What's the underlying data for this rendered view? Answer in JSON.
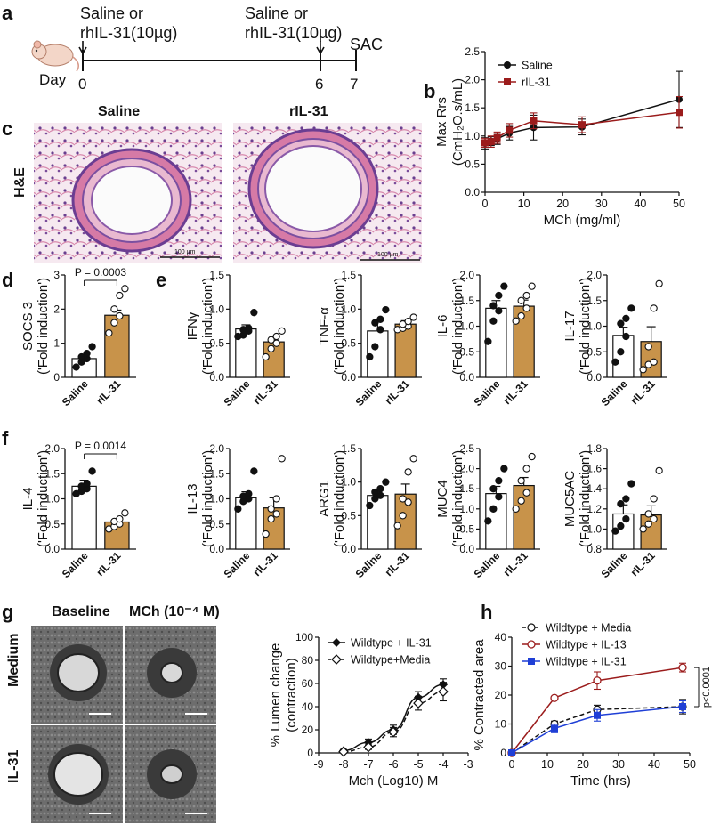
{
  "panel_letters": {
    "a": "a",
    "b": "b",
    "c": "c",
    "d": "d",
    "e": "e",
    "f": "f",
    "g": "g",
    "h": "h"
  },
  "timeline": {
    "injection_label_l1": "Saline or",
    "injection_label_l2": "rhIL-31(10µg)",
    "day_label": "Day",
    "days": [
      "0",
      "6",
      "7"
    ],
    "sac_label": "SAC"
  },
  "histology": {
    "row_label": "H&E",
    "titles": [
      "Saline",
      "rIL-31"
    ],
    "scale_text": "100 µm"
  },
  "explant": {
    "col_titles": [
      "Baseline",
      "MCh (10⁻⁴ M)"
    ],
    "row_labels": [
      "Medium",
      "IL-31"
    ]
  },
  "colors": {
    "saline": "#111111",
    "il31_red": "#9b1c1c",
    "bar_fill": "#c8934a",
    "blue": "#1f3fd6"
  },
  "chart_data": [
    {
      "id": "b",
      "type": "line",
      "xlabel": "MCh (mg/ml)",
      "ylabel_l1": "Max Rrs",
      "ylabel_l2": "(CmH₂O.s/mL)",
      "xlim": [
        0,
        50
      ],
      "ylim": [
        0,
        2.5
      ],
      "xticks": [
        0,
        10,
        20,
        30,
        40,
        50
      ],
      "yticks": [
        0.0,
        0.5,
        1.0,
        1.5,
        2.0,
        2.5
      ],
      "legend_pos": "top-left",
      "series": [
        {
          "name": "Saline",
          "x": [
            0,
            1.5625,
            3.125,
            6.25,
            12.5,
            25,
            50
          ],
          "y": [
            0.87,
            0.91,
            0.95,
            1.05,
            1.15,
            1.16,
            1.65
          ],
          "err": [
            0.1,
            0.08,
            0.1,
            0.12,
            0.22,
            0.14,
            0.5
          ],
          "color": "#111111",
          "marker": "circle"
        },
        {
          "name": "rIL-31",
          "x": [
            0,
            1.5625,
            3.125,
            6.25,
            12.5,
            25,
            50
          ],
          "y": [
            0.88,
            0.9,
            0.97,
            1.1,
            1.27,
            1.2,
            1.42
          ],
          "err": [
            0.08,
            0.1,
            0.1,
            0.12,
            0.14,
            0.14,
            0.28
          ],
          "color": "#9b1c1c",
          "marker": "square"
        }
      ]
    },
    {
      "id": "d",
      "type": "bar",
      "ylabel": "SOCS 3",
      "ylim": [
        0,
        3
      ],
      "yticks": [
        0,
        1,
        2,
        3
      ],
      "categories": [
        "Saline",
        "rIL-31"
      ],
      "values": [
        0.55,
        1.82
      ],
      "sem": [
        0.1,
        0.15
      ],
      "points": [
        [
          0.3,
          0.45,
          0.55,
          0.6,
          0.7,
          0.9
        ],
        [
          1.3,
          1.6,
          1.8,
          2.0,
          2.4,
          2.6
        ]
      ],
      "annotation": "P = 0.0003"
    },
    {
      "id": "e1",
      "type": "bar",
      "ylabel": "IFNγ",
      "ylim": [
        0,
        1.5
      ],
      "yticks": [
        0.0,
        0.5,
        1.0,
        1.5
      ],
      "categories": [
        "Saline",
        "rIL-31"
      ],
      "values": [
        0.71,
        0.52
      ],
      "sem": [
        0.06,
        0.07
      ],
      "points": [
        [
          0.6,
          0.62,
          0.68,
          0.7,
          0.72,
          0.95
        ],
        [
          0.3,
          0.42,
          0.5,
          0.55,
          0.6,
          0.68
        ]
      ]
    },
    {
      "id": "e2",
      "type": "bar",
      "ylabel": "TNF-α",
      "ylim": [
        0,
        1.5
      ],
      "yticks": [
        0.0,
        0.5,
        1.0,
        1.5
      ],
      "categories": [
        "Saline",
        "rIL-31"
      ],
      "values": [
        0.68,
        0.78
      ],
      "sem": [
        0.13,
        0.05
      ],
      "points": [
        [
          0.3,
          0.45,
          0.7,
          0.8,
          0.85,
          0.99
        ],
        [
          0.7,
          0.72,
          0.75,
          0.78,
          0.82,
          0.88
        ]
      ]
    },
    {
      "id": "e3",
      "type": "bar",
      "ylabel": "IL-6",
      "ylim": [
        0,
        2.0
      ],
      "yticks": [
        0.0,
        0.5,
        1.0,
        1.5,
        2.0
      ],
      "categories": [
        "Saline",
        "rIL-31"
      ],
      "values": [
        1.35,
        1.39
      ],
      "sem": [
        0.15,
        0.12
      ],
      "points": [
        [
          0.7,
          1.1,
          1.3,
          1.4,
          1.6,
          1.78
        ],
        [
          1.1,
          1.2,
          1.35,
          1.5,
          1.6,
          1.78
        ]
      ]
    },
    {
      "id": "e4",
      "type": "bar",
      "ylabel": "IL-17",
      "ylim": [
        0,
        2.0
      ],
      "yticks": [
        0.0,
        0.5,
        1.0,
        1.5,
        2.0
      ],
      "categories": [
        "Saline",
        "rIL-31"
      ],
      "values": [
        0.82,
        0.7
      ],
      "sem": [
        0.16,
        0.29
      ],
      "points": [
        [
          0.3,
          0.5,
          0.8,
          1.05,
          1.15,
          1.35
        ],
        [
          0.15,
          0.25,
          0.3,
          0.6,
          1.35,
          1.83
        ]
      ]
    },
    {
      "id": "f1",
      "type": "bar",
      "ylabel": "IL-4",
      "ylim": [
        0,
        2.0
      ],
      "yticks": [
        0.0,
        0.5,
        1.0,
        1.5,
        2.0
      ],
      "categories": [
        "Saline",
        "rIL-31"
      ],
      "values": [
        1.25,
        0.54
      ],
      "sem": [
        0.12,
        0.05
      ],
      "points": [
        [
          1.1,
          1.15,
          1.2,
          1.25,
          1.3,
          1.55
        ],
        [
          0.4,
          0.45,
          0.5,
          0.55,
          0.6,
          0.72
        ]
      ],
      "annotation": "P = 0.0014"
    },
    {
      "id": "f2",
      "type": "bar",
      "ylabel": "IL-13",
      "ylim": [
        0,
        2.0
      ],
      "yticks": [
        0.0,
        0.5,
        1.0,
        1.5,
        2.0
      ],
      "categories": [
        "Saline",
        "rIL-31"
      ],
      "values": [
        1.02,
        0.82
      ],
      "sem": [
        0.12,
        0.2
      ],
      "points": [
        [
          0.8,
          0.95,
          1.0,
          1.05,
          1.1,
          1.55
        ],
        [
          0.3,
          0.6,
          0.7,
          0.8,
          1.0,
          1.8
        ]
      ]
    },
    {
      "id": "f3",
      "type": "bar",
      "ylabel": "ARG1",
      "ylim": [
        0,
        1.5
      ],
      "yticks": [
        0.0,
        0.5,
        1.0,
        1.5
      ],
      "categories": [
        "Saline",
        "rIL-31"
      ],
      "values": [
        0.8,
        0.82
      ],
      "sem": [
        0.06,
        0.15
      ],
      "points": [
        [
          0.65,
          0.75,
          0.8,
          0.85,
          0.9,
          1.0
        ],
        [
          0.35,
          0.5,
          0.7,
          0.75,
          1.15,
          1.35
        ]
      ]
    },
    {
      "id": "f4",
      "type": "bar",
      "ylabel": "MUC4",
      "ylim": [
        0,
        2.5
      ],
      "yticks": [
        0.0,
        0.5,
        1.0,
        1.5,
        2.0,
        2.5
      ],
      "categories": [
        "Saline",
        "rIL-31"
      ],
      "values": [
        1.38,
        1.58
      ],
      "sem": [
        0.18,
        0.2
      ],
      "points": [
        [
          0.7,
          1.0,
          1.3,
          1.5,
          1.7,
          2.0
        ],
        [
          1.0,
          1.2,
          1.4,
          1.7,
          2.0,
          2.3
        ]
      ]
    },
    {
      "id": "f5",
      "type": "bar",
      "ylabel": "MUC5AC",
      "ylim": [
        0.8,
        1.8
      ],
      "yticks": [
        0.8,
        1.0,
        1.2,
        1.4,
        1.6,
        1.8
      ],
      "categories": [
        "Saline",
        "rIL-31"
      ],
      "values": [
        1.15,
        1.14
      ],
      "sem": [
        0.09,
        0.09
      ],
      "points": [
        [
          0.98,
          1.03,
          1.1,
          1.25,
          1.3,
          1.45
        ],
        [
          1.0,
          1.05,
          1.1,
          1.15,
          1.3,
          1.58
        ]
      ]
    },
    {
      "id": "g",
      "type": "line",
      "xlabel": "Mch (Log10)  M",
      "ylabel_l1": "% Lumen change",
      "ylabel_l2": "(contraction)",
      "xlim": [
        -9,
        -3
      ],
      "ylim": [
        0,
        100
      ],
      "xticks": [
        -9,
        -8,
        -7,
        -6,
        -5,
        -4,
        -3
      ],
      "yticks": [
        0,
        20,
        40,
        60,
        80,
        100
      ],
      "legend_pos": "top-left",
      "series": [
        {
          "name": "Wildtype + IL-31",
          "x": [
            -8,
            -7,
            -6,
            -5,
            -4
          ],
          "y": [
            2,
            9,
            20,
            48,
            59
          ],
          "err": [
            1,
            3,
            4,
            5,
            5
          ],
          "color": "#111111",
          "marker": "filled-diamond",
          "dash": false
        },
        {
          "name": "Wildtype+Media",
          "x": [
            -8,
            -7,
            -6,
            -5,
            -4
          ],
          "y": [
            1,
            5,
            18,
            43,
            53
          ],
          "err": [
            1,
            2,
            4,
            6,
            8
          ],
          "color": "#111111",
          "marker": "open-diamond",
          "dash": true
        }
      ]
    },
    {
      "id": "h",
      "type": "line",
      "xlabel": "Time (hrs)",
      "ylabel": "% Contracted area",
      "xlim": [
        0,
        50
      ],
      "ylim": [
        0,
        40
      ],
      "xticks": [
        0,
        10,
        20,
        30,
        40,
        50
      ],
      "yticks": [
        0,
        10,
        20,
        30,
        40
      ],
      "legend_pos": "top-left",
      "annotation": "p<0.0001",
      "series": [
        {
          "name": "Wildtype + Media",
          "x": [
            0,
            12,
            24,
            48
          ],
          "y": [
            0,
            10,
            15,
            16
          ],
          "err": [
            0,
            1,
            1.5,
            2.5
          ],
          "color": "#111111",
          "marker": "open-circle",
          "dash": true
        },
        {
          "name": "Wildtype + IL-13",
          "x": [
            0,
            12,
            24,
            48
          ],
          "y": [
            0,
            19,
            25,
            29.5
          ],
          "err": [
            0,
            0.5,
            3,
            1.5
          ],
          "color": "#9b1c1c",
          "marker": "open-circle-red",
          "dash": false
        },
        {
          "name": "Wildtype + IL-31",
          "x": [
            0,
            12,
            24,
            48
          ],
          "y": [
            0,
            8.5,
            13,
            16
          ],
          "err": [
            0,
            1.5,
            2,
            2
          ],
          "color": "#1f3fd6",
          "marker": "filled-square",
          "dash": false
        }
      ]
    }
  ]
}
